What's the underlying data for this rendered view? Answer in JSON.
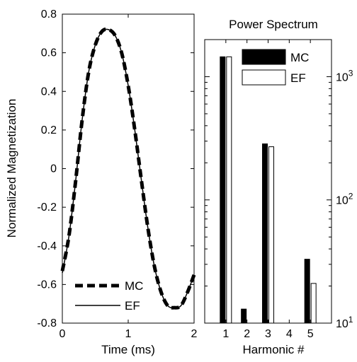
{
  "chart_data": [
    {
      "type": "line",
      "title": "",
      "xlabel": "Time (ms)",
      "ylabel": "Normalized Magnetization",
      "xlim": [
        0,
        2
      ],
      "ylim": [
        -0.8,
        0.8
      ],
      "xticks": [
        "0",
        "1",
        "2"
      ],
      "yticks": [
        "-0.8",
        "-0.6",
        "-0.4",
        "-0.2",
        "0",
        "0.2",
        "0.4",
        "0.6",
        "0.8"
      ],
      "grid": false,
      "legend_placement": "bottom-left",
      "series": [
        {
          "name": "MC",
          "style": "dashed",
          "x": [
            0,
            0.1,
            0.2,
            0.3,
            0.4,
            0.5,
            0.6,
            0.7,
            0.8,
            0.9,
            1.0,
            1.1,
            1.2,
            1.3,
            1.4,
            1.5,
            1.6,
            1.7,
            1.8,
            1.9,
            2.0
          ],
          "y": [
            -0.53,
            -0.35,
            -0.07,
            0.25,
            0.5,
            0.64,
            0.71,
            0.72,
            0.69,
            0.6,
            0.43,
            0.2,
            -0.06,
            -0.31,
            -0.51,
            -0.64,
            -0.71,
            -0.72,
            -0.71,
            -0.64,
            -0.55
          ]
        },
        {
          "name": "EF",
          "style": "solid",
          "x": [
            0,
            0.1,
            0.2,
            0.3,
            0.4,
            0.5,
            0.6,
            0.7,
            0.8,
            0.9,
            1.0,
            1.1,
            1.2,
            1.3,
            1.4,
            1.5,
            1.6,
            1.7,
            1.8,
            1.9,
            2.0
          ],
          "y": [
            -0.54,
            -0.35,
            -0.07,
            0.25,
            0.5,
            0.64,
            0.71,
            0.72,
            0.69,
            0.6,
            0.43,
            0.2,
            -0.06,
            -0.31,
            -0.51,
            -0.64,
            -0.71,
            -0.72,
            -0.71,
            -0.64,
            -0.55
          ]
        }
      ]
    },
    {
      "type": "bar",
      "title": "Power Spectrum",
      "xlabel": "Harmonic #",
      "ylabel": "",
      "yscale": "log",
      "ylim": [
        10,
        2000
      ],
      "yticks": [
        {
          "base": "10",
          "exp": "1"
        },
        {
          "base": "10",
          "exp": "2"
        },
        {
          "base": "10",
          "exp": "3"
        }
      ],
      "yaxis_side": "right",
      "categories": [
        "1",
        "2",
        "3",
        "4",
        "5"
      ],
      "legend_placement": "top-right",
      "series": [
        {
          "name": "MC",
          "color": "#000000",
          "values": [
            1450,
            13,
            285,
            0,
            33
          ]
        },
        {
          "name": "EF",
          "color": "#ffffff",
          "values": [
            1450,
            0,
            270,
            0,
            21
          ]
        }
      ]
    }
  ]
}
